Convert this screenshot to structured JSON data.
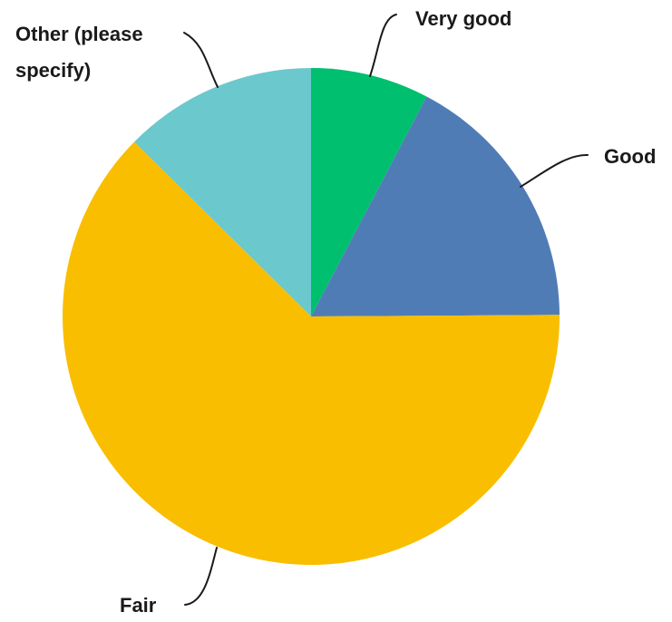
{
  "chart_data": {
    "type": "pie",
    "title": "",
    "slices": [
      {
        "label": "Very good",
        "label_lines": [
          "Very good"
        ],
        "value": 7.7,
        "color": "#00bf6f"
      },
      {
        "label": "Good",
        "label_lines": [
          "Good"
        ],
        "value": 17.2,
        "color": "#507cb6"
      },
      {
        "label": "Fair",
        "label_lines": [
          "Fair"
        ],
        "value": 62.5,
        "color": "#f9be00"
      },
      {
        "label": "Other (please specify)",
        "label_lines": [
          "Other (please",
          "specify)"
        ],
        "value": 12.6,
        "color": "#6bc8cd"
      }
    ],
    "start_angle_deg": 0,
    "direction": "clockwise",
    "legend": "none"
  }
}
